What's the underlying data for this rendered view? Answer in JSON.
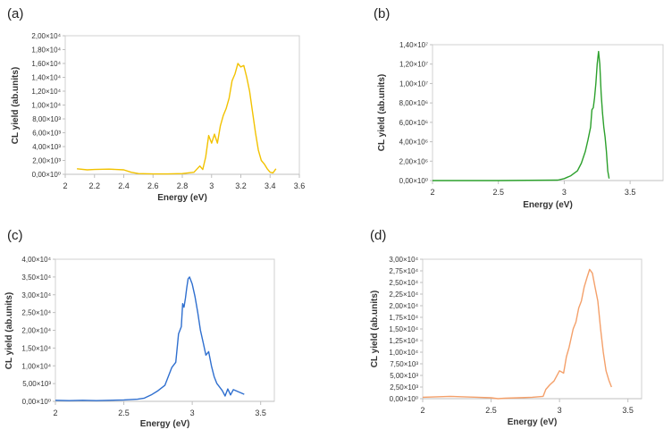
{
  "chart_data": [
    {
      "type": "line",
      "panel_label": "(a)",
      "xlabel": "Energy (eV)",
      "ylabel": "CL yield (ab.units)",
      "xlim": [
        2,
        3.6
      ],
      "ylim": [
        0,
        20000
      ],
      "xticks": [
        "2",
        "2.2",
        "2.4",
        "2.6",
        "2.8",
        "3",
        "3.2",
        "3.4",
        "3.6"
      ],
      "yticks": [
        "0,00×10⁰",
        "2,00×10³",
        "4,00×10³",
        "6,00×10³",
        "8,00×10³",
        "1,00×10⁴",
        "1,20×10⁴",
        "1,40×10⁴",
        "1,60×10⁴",
        "1,80×10⁴",
        "2,00×10⁴"
      ],
      "color": "#f2c200",
      "x": [
        2.08,
        2.15,
        2.2,
        2.3,
        2.4,
        2.45,
        2.5,
        2.6,
        2.7,
        2.8,
        2.88,
        2.92,
        2.94,
        2.96,
        2.98,
        3.0,
        3.02,
        3.04,
        3.06,
        3.08,
        3.1,
        3.12,
        3.14,
        3.16,
        3.18,
        3.2,
        3.22,
        3.24,
        3.26,
        3.28,
        3.3,
        3.32,
        3.34,
        3.36,
        3.38,
        3.4,
        3.42,
        3.44
      ],
      "y": [
        800,
        650,
        700,
        750,
        650,
        300,
        100,
        50,
        50,
        100,
        300,
        1200,
        700,
        2500,
        5600,
        4500,
        5800,
        4500,
        7000,
        8500,
        9500,
        11000,
        13500,
        14500,
        16000,
        15500,
        15700,
        14000,
        12000,
        9000,
        6000,
        3500,
        2000,
        1500,
        800,
        300,
        200,
        800
      ]
    },
    {
      "type": "line",
      "panel_label": "(b)",
      "xlabel": "Energy (eV)",
      "ylabel": "CL yield (ab.units)",
      "xlim": [
        2,
        3.75
      ],
      "ylim": [
        0,
        14000000
      ],
      "xticks": [
        "2",
        "2.5",
        "3",
        "3.5"
      ],
      "yticks": [
        "0,00×10⁰",
        "2,00×10⁶",
        "4,00×10⁶",
        "6,00×10⁶",
        "8,00×10⁶",
        "1,00×10⁷",
        "1,20×10⁷",
        "1,40×10⁷"
      ],
      "color": "#2ca02c",
      "x": [
        2.0,
        2.5,
        2.95,
        3.0,
        3.05,
        3.1,
        3.13,
        3.16,
        3.18,
        3.2,
        3.21,
        3.22,
        3.23,
        3.24,
        3.25,
        3.26,
        3.27,
        3.28,
        3.29,
        3.3,
        3.31,
        3.32,
        3.33,
        3.34
      ],
      "y": [
        0,
        0,
        50000,
        200000,
        500000,
        1000000,
        1800000,
        3000000,
        4200000,
        5500000,
        7300000,
        7500000,
        8500000,
        10000000,
        12000000,
        13300000,
        12000000,
        9000000,
        7000000,
        5500000,
        4500000,
        3000000,
        1000000,
        200000
      ]
    },
    {
      "type": "line",
      "panel_label": "(c)",
      "xlabel": "Energy (eV)",
      "ylabel": "CL yield (ab.units)",
      "xlim": [
        2,
        3.6
      ],
      "ylim": [
        0,
        40000
      ],
      "xticks": [
        "2",
        "2.5",
        "3",
        "3.5"
      ],
      "yticks": [
        "0,00×10⁰",
        "5,00×10³",
        "1,00×10⁴",
        "1,50×10⁴",
        "2,00×10⁴",
        "2,50×10⁴",
        "3,00×10⁴",
        "3,50×10⁴",
        "4,00×10⁴"
      ],
      "color": "#2f6fcf",
      "x": [
        2.0,
        2.1,
        2.2,
        2.3,
        2.4,
        2.5,
        2.6,
        2.65,
        2.7,
        2.75,
        2.8,
        2.85,
        2.88,
        2.9,
        2.92,
        2.93,
        2.94,
        2.95,
        2.96,
        2.97,
        2.98,
        3.0,
        3.02,
        3.04,
        3.06,
        3.08,
        3.1,
        3.12,
        3.14,
        3.16,
        3.18,
        3.2,
        3.22,
        3.24,
        3.26,
        3.28,
        3.3,
        3.35,
        3.38
      ],
      "y": [
        300,
        200,
        300,
        200,
        300,
        400,
        600,
        900,
        1800,
        3000,
        4500,
        9500,
        11000,
        19000,
        21000,
        27500,
        26500,
        29000,
        32000,
        34500,
        35000,
        33000,
        29500,
        25000,
        20000,
        16500,
        13000,
        14000,
        10000,
        7000,
        5000,
        4000,
        3000,
        1500,
        3500,
        1800,
        3300,
        2500,
        2000
      ]
    },
    {
      "type": "line",
      "panel_label": "(d)",
      "xlabel": "Energy (eV)",
      "ylabel": "CL yield (ab.units)",
      "xlim": [
        2,
        3.6
      ],
      "ylim": [
        0,
        30000
      ],
      "xticks": [
        "2",
        "2.5",
        "3",
        "3.5"
      ],
      "yticks": [
        "0,00×10⁰",
        "2,50×10³",
        "5,00×10³",
        "7,50×10³",
        "1,00×10⁴",
        "1,25×10⁴",
        "1,50×10⁴",
        "1,75×10⁴",
        "2,00×10⁴",
        "2,25×10⁴",
        "2,50×10⁴",
        "2,75×10⁴",
        "3,00×10⁴"
      ],
      "color": "#f4a06a",
      "x": [
        2.0,
        2.1,
        2.2,
        2.3,
        2.4,
        2.5,
        2.55,
        2.6,
        2.7,
        2.8,
        2.88,
        2.9,
        2.93,
        2.96,
        3.0,
        3.03,
        3.05,
        3.07,
        3.1,
        3.12,
        3.14,
        3.16,
        3.18,
        3.2,
        3.22,
        3.24,
        3.26,
        3.28,
        3.3,
        3.32,
        3.34,
        3.36,
        3.38
      ],
      "y": [
        300,
        400,
        500,
        400,
        300,
        200,
        0,
        100,
        200,
        300,
        500,
        2000,
        3000,
        3800,
        6000,
        5500,
        9000,
        11000,
        15000,
        16500,
        19500,
        21000,
        24000,
        26000,
        27800,
        27000,
        24000,
        21000,
        15000,
        10000,
        6000,
        4000,
        2500
      ]
    }
  ]
}
